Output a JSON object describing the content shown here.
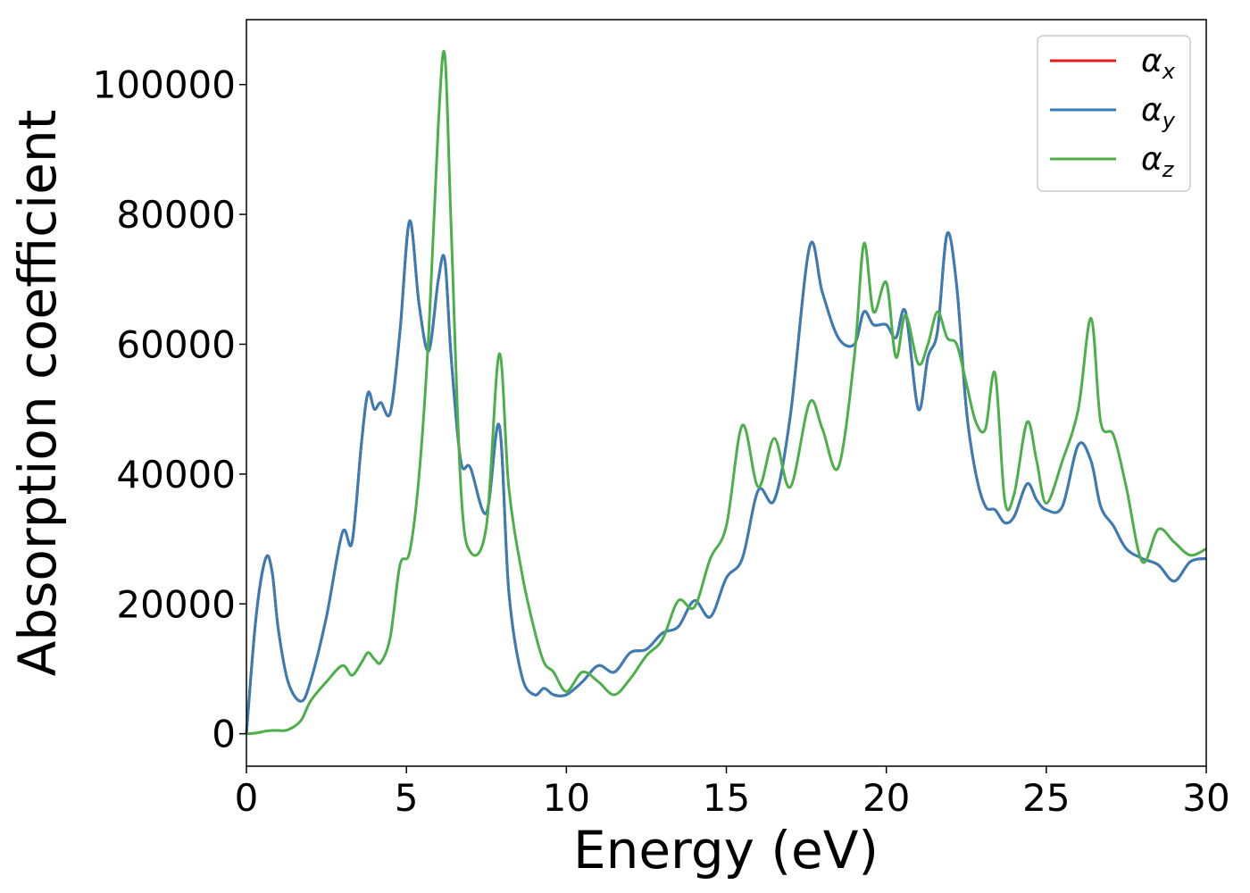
{
  "chart_data": {
    "type": "line",
    "xlabel": "Energy (eV)",
    "ylabel": "Absorption coefficient",
    "xlim": [
      0,
      30
    ],
    "ylim": [
      -5000,
      110000
    ],
    "xticks": [
      0,
      5,
      10,
      15,
      20,
      25,
      30
    ],
    "yticks": [
      0,
      20000,
      40000,
      60000,
      80000,
      100000
    ],
    "grid": false,
    "legend_position": "top-right",
    "x": [
      0,
      0.3,
      0.6,
      0.8,
      1.0,
      1.3,
      1.7,
      2.0,
      2.5,
      3.0,
      3.3,
      3.6,
      3.8,
      4.0,
      4.2,
      4.5,
      4.8,
      5.1,
      5.4,
      5.7,
      6.0,
      6.2,
      6.4,
      6.7,
      7.0,
      7.5,
      7.9,
      8.2,
      8.6,
      9.0,
      9.3,
      9.6,
      10.0,
      10.5,
      11.0,
      11.5,
      12.0,
      12.5,
      13.0,
      13.5,
      14.0,
      14.5,
      15.0,
      15.5,
      16.0,
      16.5,
      17.0,
      17.6,
      18.0,
      18.5,
      19.0,
      19.3,
      19.6,
      20.0,
      20.3,
      20.6,
      21.0,
      21.3,
      21.6,
      21.9,
      22.2,
      22.5,
      22.8,
      23.1,
      23.4,
      23.7,
      24.0,
      24.4,
      24.7,
      25.0,
      25.5,
      26.0,
      26.4,
      26.7,
      27.1,
      27.5,
      28.0,
      28.5,
      29.0,
      29.5,
      30.0
    ],
    "series": [
      {
        "name": "αx",
        "label_base": "α",
        "label_sub": "x",
        "color": "#e41a1c",
        "values": [
          0,
          18000,
          27000,
          25000,
          16000,
          8000,
          5000,
          8000,
          18000,
          31000,
          29500,
          45000,
          52500,
          50000,
          51000,
          49500,
          62000,
          79000,
          66000,
          59000,
          70000,
          73000,
          58000,
          42000,
          41000,
          34000,
          47500,
          22000,
          9000,
          6000,
          7000,
          6000,
          6000,
          8000,
          10500,
          9500,
          12500,
          13000,
          15500,
          16500,
          20500,
          18000,
          24000,
          27000,
          37500,
          36000,
          49000,
          75000,
          68000,
          61000,
          60000,
          65000,
          63000,
          63000,
          61000,
          65000,
          50000,
          58000,
          62000,
          77000,
          69000,
          50000,
          40000,
          35000,
          34500,
          32500,
          33500,
          38500,
          36000,
          34500,
          35000,
          44500,
          42000,
          35000,
          32000,
          28500,
          27000,
          26000,
          23500,
          26500,
          27000
        ]
      },
      {
        "name": "αy",
        "label_base": "α",
        "label_sub": "y",
        "color": "#377eb8",
        "values": [
          0,
          18000,
          27000,
          25000,
          16000,
          8000,
          5000,
          8000,
          18000,
          31000,
          29500,
          45000,
          52500,
          50000,
          51000,
          49500,
          62000,
          79000,
          66000,
          59000,
          70000,
          73000,
          58000,
          42000,
          41000,
          34000,
          47500,
          22000,
          9000,
          6000,
          7000,
          6000,
          6000,
          8000,
          10500,
          9500,
          12500,
          13000,
          15500,
          16500,
          20500,
          18000,
          24000,
          27000,
          37500,
          36000,
          49000,
          75000,
          68000,
          61000,
          60000,
          65000,
          63000,
          63000,
          61000,
          65000,
          50000,
          58000,
          62000,
          77000,
          69000,
          50000,
          40000,
          35000,
          34500,
          32500,
          33500,
          38500,
          36000,
          34500,
          35000,
          44500,
          42000,
          35000,
          32000,
          28500,
          27000,
          26000,
          23500,
          26500,
          27000
        ]
      },
      {
        "name": "αz",
        "label_base": "α",
        "label_sub": "z",
        "color": "#4daf4a",
        "values": [
          0,
          100,
          400,
          500,
          500,
          600,
          2000,
          5000,
          8000,
          10500,
          9000,
          11000,
          12500,
          11500,
          11000,
          15000,
          26000,
          28000,
          40000,
          62000,
          94000,
          104500,
          78000,
          38000,
          28000,
          32000,
          58500,
          38000,
          25000,
          16000,
          11000,
          9500,
          6500,
          9500,
          8000,
          6000,
          8500,
          12000,
          14500,
          20500,
          19500,
          27000,
          32000,
          47500,
          38000,
          45500,
          38000,
          51000,
          47000,
          41000,
          58000,
          75500,
          65000,
          69500,
          58000,
          64500,
          57000,
          60000,
          65000,
          61000,
          60000,
          54000,
          48000,
          47000,
          55500,
          36000,
          37000,
          48000,
          42000,
          35500,
          42000,
          50000,
          64000,
          48000,
          46000,
          38000,
          26500,
          31500,
          29500,
          27500,
          28500
        ]
      }
    ]
  }
}
